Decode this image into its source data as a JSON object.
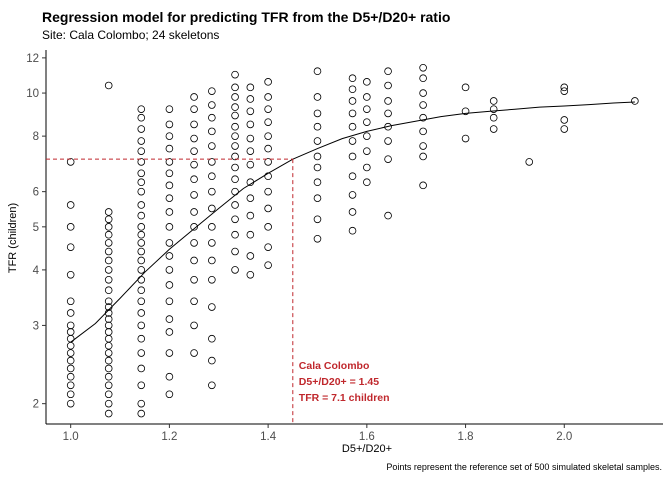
{
  "chart_data": {
    "type": "scatter",
    "title": "Regression model for predicting TFR from the D5+/D20+ ratio",
    "subtitle": "Site: Cala Colombo; 24 skeletons",
    "xlabel": "D5+/D20+",
    "ylabel": "TFR (children)",
    "caption": "Points represent the reference set of 500 simulated skeletal samples.",
    "xlim": [
      0.95,
      2.2
    ],
    "ylim": [
      1.8,
      12.5
    ],
    "y_scale": "log",
    "x_ticks": [
      1.0,
      1.2,
      1.4,
      1.6,
      1.8,
      2.0
    ],
    "x_tick_labels": [
      "1.0",
      "1.2",
      "1.4",
      "1.6",
      "1.8",
      "2.0"
    ],
    "y_ticks": [
      2,
      3,
      4,
      5,
      6,
      8,
      10,
      12
    ],
    "y_tick_labels": [
      "2",
      "3",
      "4",
      "5",
      "6",
      "8",
      "10",
      "12"
    ],
    "grid": false,
    "annotation": {
      "lines": [
        "Cala Colombo",
        "D5+/D20+ = 1.45",
        "TFR = 7.1 children"
      ],
      "x": 1.45,
      "y": 7.1,
      "color": "#c0282d"
    },
    "series": [
      {
        "kind": "points",
        "columns": [
          {
            "x": 1.0,
            "y": [
              2.0,
              2.1,
              2.2,
              2.3,
              2.4,
              2.5,
              2.6,
              2.7,
              2.8,
              2.9,
              3.0,
              3.2,
              3.4,
              3.9,
              4.5,
              5.0,
              5.6,
              7.0
            ]
          },
          {
            "x": 1.077,
            "y": [
              1.9,
              2.0,
              2.1,
              2.2,
              2.3,
              2.4,
              2.5,
              2.6,
              2.7,
              2.8,
              2.9,
              3.0,
              3.1,
              3.2,
              3.3,
              3.4,
              3.6,
              3.8,
              4.0,
              4.2,
              4.4,
              4.6,
              4.8,
              5.0,
              5.2,
              5.4,
              10.4
            ]
          },
          {
            "x": 1.143,
            "y": [
              1.9,
              2.0,
              2.2,
              2.4,
              2.6,
              2.8,
              3.0,
              3.2,
              3.4,
              3.6,
              3.8,
              4.0,
              4.2,
              4.4,
              4.6,
              4.8,
              5.0,
              5.3,
              5.6,
              6.0,
              6.3,
              6.6,
              7.0,
              7.4,
              7.8,
              8.3,
              8.8,
              9.2
            ]
          },
          {
            "x": 1.2,
            "y": [
              2.1,
              2.3,
              2.6,
              2.9,
              3.1,
              3.4,
              3.7,
              4.0,
              4.3,
              4.6,
              5.0,
              5.4,
              5.8,
              6.2,
              6.6,
              7.0,
              7.5,
              8.0,
              8.5,
              9.2
            ]
          },
          {
            "x": 1.25,
            "y": [
              2.6,
              3.0,
              3.4,
              3.8,
              4.2,
              4.6,
              5.0,
              5.4,
              5.9,
              6.4,
              6.9,
              7.4,
              7.9,
              8.5,
              9.2,
              9.8
            ]
          },
          {
            "x": 1.286,
            "y": [
              2.2,
              2.5,
              2.8,
              3.3,
              3.8,
              4.2,
              4.6,
              5.0,
              5.5,
              6.0,
              6.5,
              7.0,
              7.6,
              8.2,
              8.8,
              9.4,
              10.1
            ]
          },
          {
            "x": 1.333,
            "y": [
              4.0,
              4.4,
              4.8,
              5.2,
              5.6,
              6.0,
              6.4,
              6.8,
              7.2,
              7.6,
              8.0,
              8.4,
              8.9,
              9.3,
              9.8,
              10.3,
              11.0
            ]
          },
          {
            "x": 1.364,
            "y": [
              3.9,
              4.3,
              4.8,
              5.3,
              5.8,
              6.3,
              6.9,
              7.4,
              7.9,
              8.5,
              9.1,
              9.7,
              10.3
            ]
          },
          {
            "x": 1.4,
            "y": [
              4.1,
              4.5,
              5.0,
              5.5,
              6.0,
              6.5,
              7.0,
              7.5,
              8.0,
              8.6,
              9.2,
              9.8,
              10.6
            ]
          },
          {
            "x": 1.5,
            "y": [
              4.7,
              5.2,
              5.8,
              6.3,
              6.8,
              7.2,
              7.8,
              8.4,
              9.0,
              9.8,
              11.2
            ]
          },
          {
            "x": 1.571,
            "y": [
              4.9,
              5.4,
              5.9,
              6.5,
              7.2,
              7.8,
              8.4,
              9.0,
              9.6,
              10.2,
              10.8
            ]
          },
          {
            "x": 1.6,
            "y": [
              6.3,
              6.8,
              7.4,
              8.0,
              8.6,
              9.2,
              9.8,
              10.6
            ]
          },
          {
            "x": 1.643,
            "y": [
              5.3,
              7.1,
              7.8,
              8.4,
              9.0,
              9.6,
              10.4,
              11.2
            ]
          },
          {
            "x": 1.714,
            "y": [
              6.2,
              7.2,
              7.6,
              8.2,
              8.8,
              9.4,
              10.0,
              10.8,
              11.4
            ]
          },
          {
            "x": 1.8,
            "y": [
              7.9,
              9.1,
              10.3
            ]
          },
          {
            "x": 1.857,
            "y": [
              8.3,
              8.8,
              9.2,
              9.6
            ]
          },
          {
            "x": 1.929,
            "y": [
              7.0
            ]
          },
          {
            "x": 2.0,
            "y": [
              8.3,
              8.7,
              10.1,
              10.3
            ]
          },
          {
            "x": 2.143,
            "y": [
              9.6
            ]
          }
        ]
      },
      {
        "kind": "fit",
        "x": [
          1.0,
          1.05,
          1.1,
          1.15,
          1.2,
          1.25,
          1.3,
          1.35,
          1.4,
          1.45,
          1.5,
          1.55,
          1.6,
          1.65,
          1.7,
          1.75,
          1.8,
          1.85,
          1.9,
          1.95,
          2.0,
          2.05,
          2.1,
          2.143
        ],
        "y": [
          2.75,
          3.03,
          3.45,
          3.95,
          4.45,
          4.95,
          5.5,
          6.1,
          6.6,
          7.1,
          7.5,
          7.9,
          8.2,
          8.45,
          8.65,
          8.85,
          9.0,
          9.1,
          9.2,
          9.3,
          9.35,
          9.42,
          9.5,
          9.55
        ]
      }
    ]
  }
}
